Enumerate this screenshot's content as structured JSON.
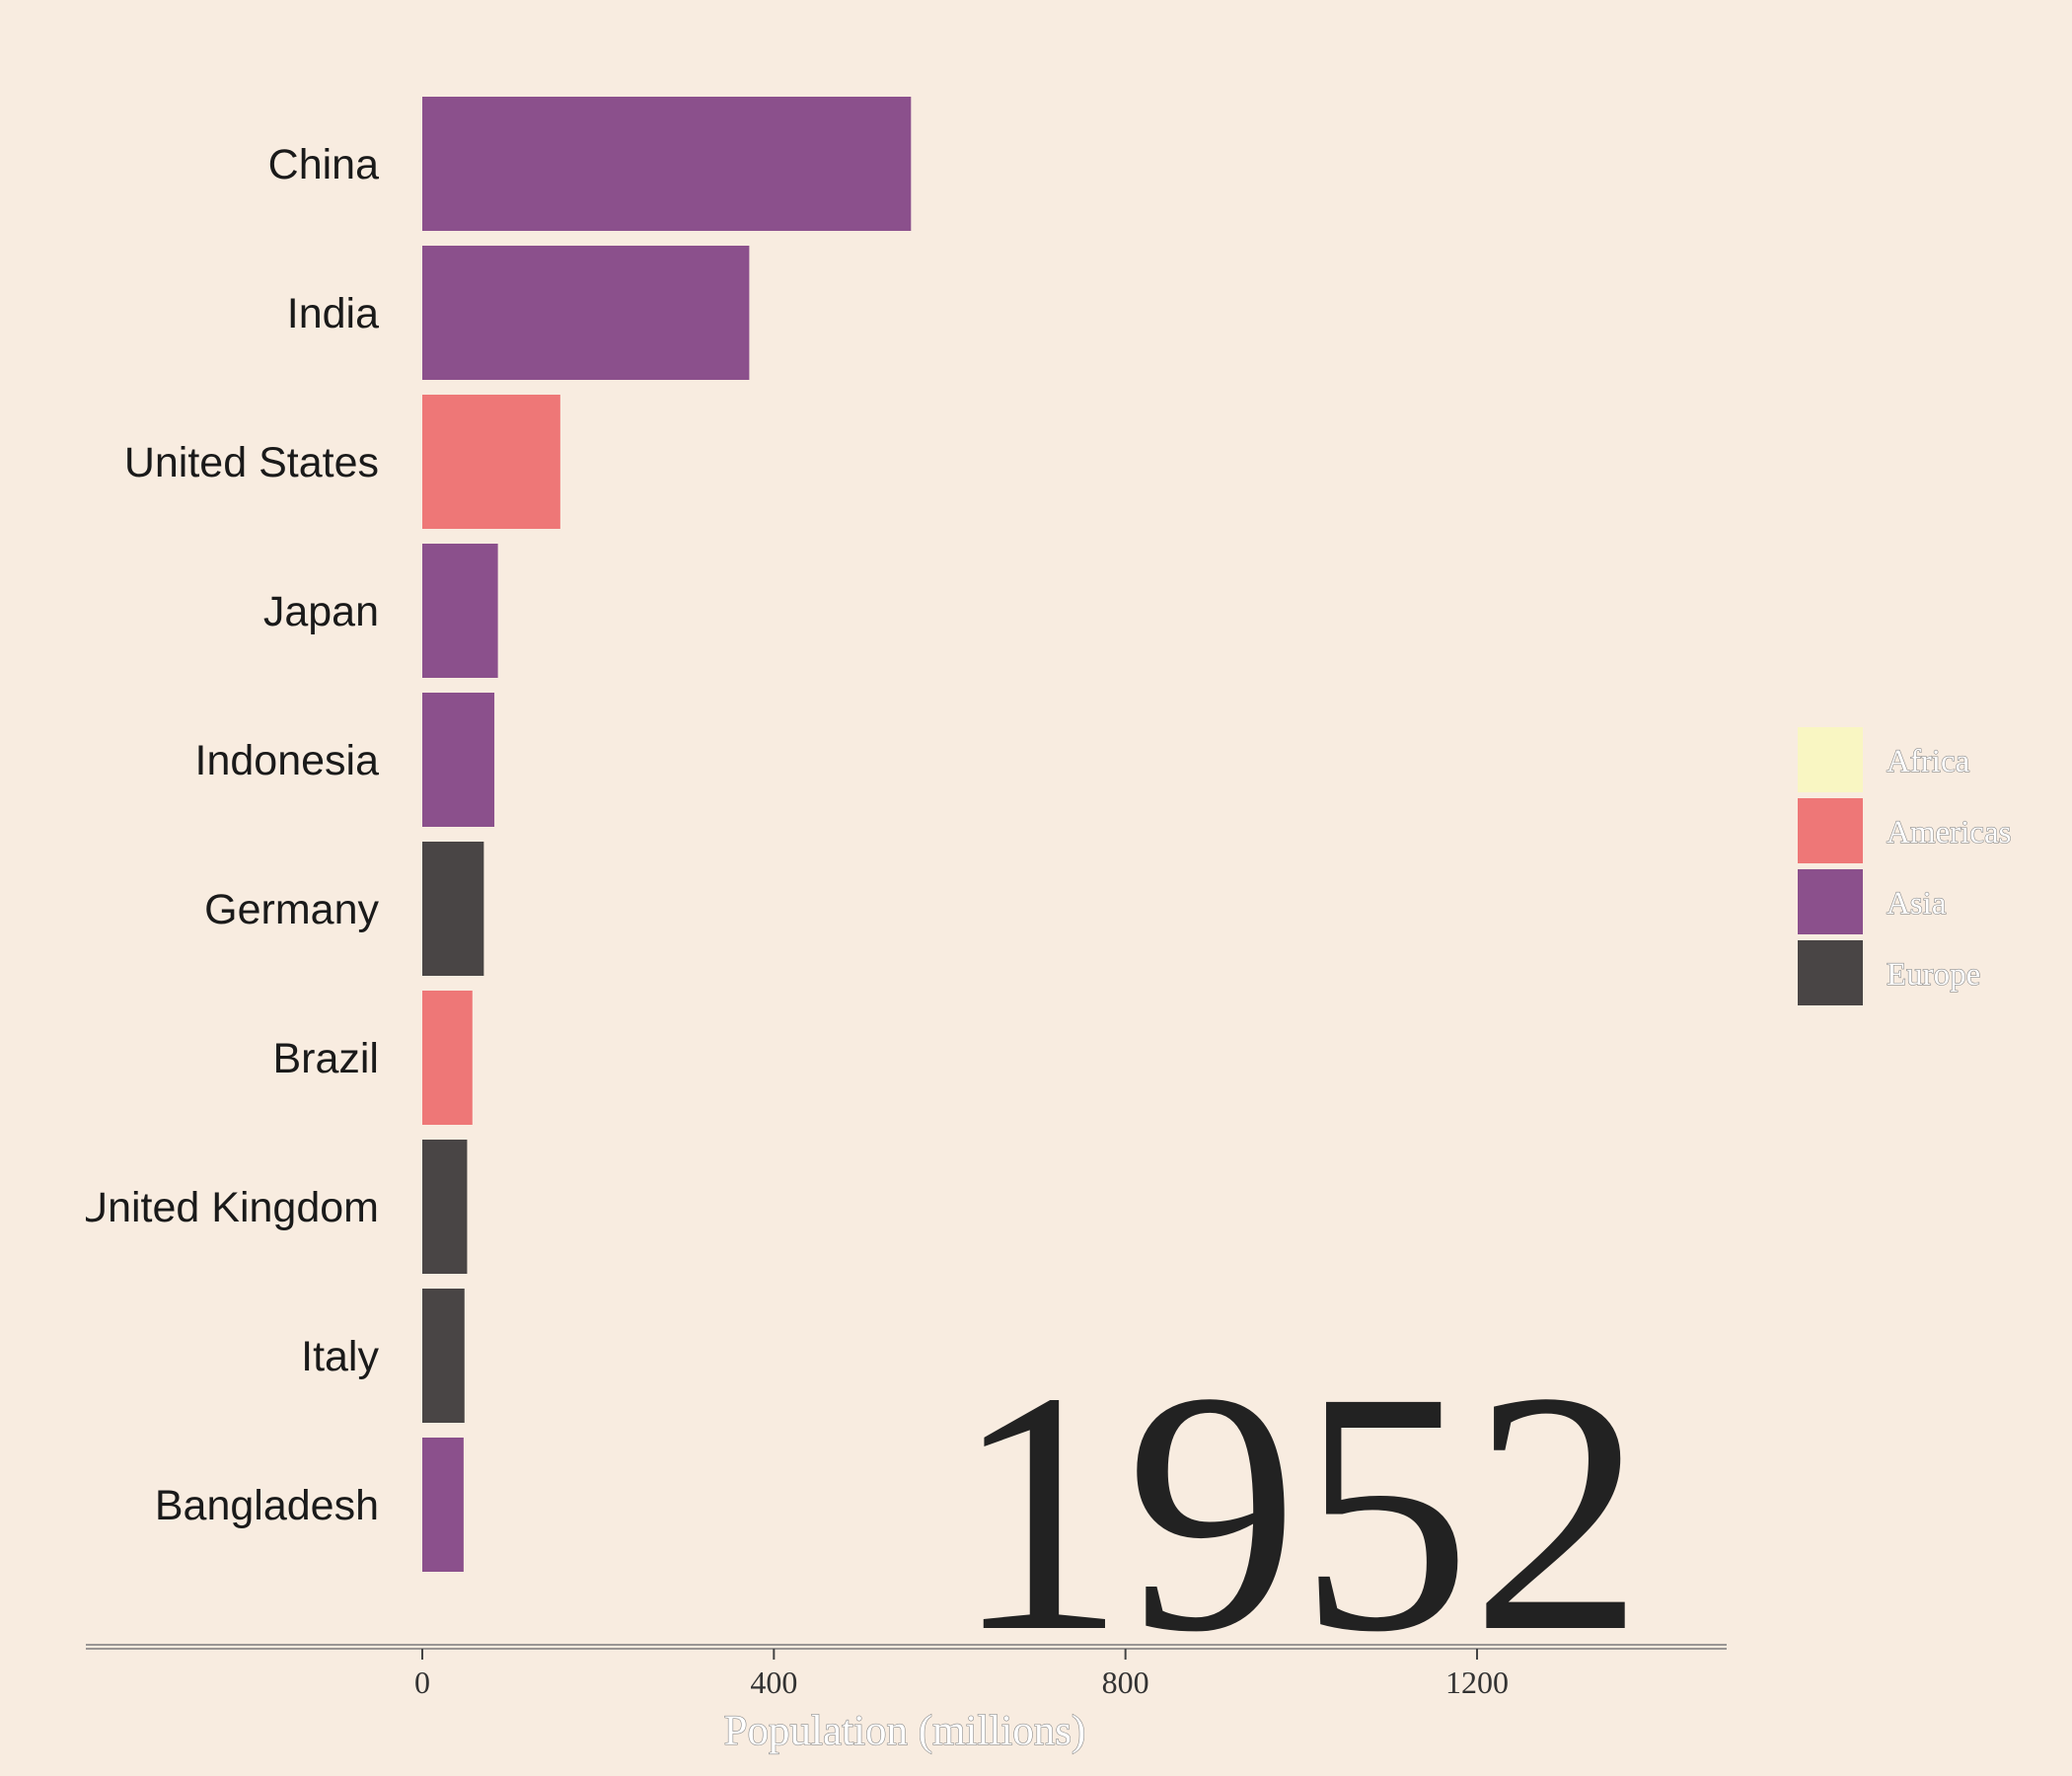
{
  "chart_data": {
    "type": "bar",
    "orientation": "horizontal",
    "categories": [
      "China",
      "India",
      "United States",
      "Japan",
      "Indonesia",
      "Germany",
      "Brazil",
      "United Kingdom",
      "Italy",
      "Bangladesh"
    ],
    "values": [
      556,
      372,
      157,
      86,
      82,
      70,
      57,
      51,
      48,
      47
    ],
    "groups": [
      "Asia",
      "Asia",
      "Americas",
      "Asia",
      "Asia",
      "Europe",
      "Americas",
      "Europe",
      "Europe",
      "Asia"
    ],
    "xlabel": "Population (millions)",
    "xticks": [
      0,
      400,
      800,
      1200
    ],
    "xlim": [
      -385,
      1485
    ],
    "year": "1952",
    "legend": {
      "placement": "right",
      "entries": [
        {
          "name": "Africa",
          "color": "#f9f6c2"
        },
        {
          "name": "Americas",
          "color": "#ee7777"
        },
        {
          "name": "Asia",
          "color": "#8b508c"
        },
        {
          "name": "Europe",
          "color": "#494545"
        }
      ]
    },
    "grid": false
  }
}
